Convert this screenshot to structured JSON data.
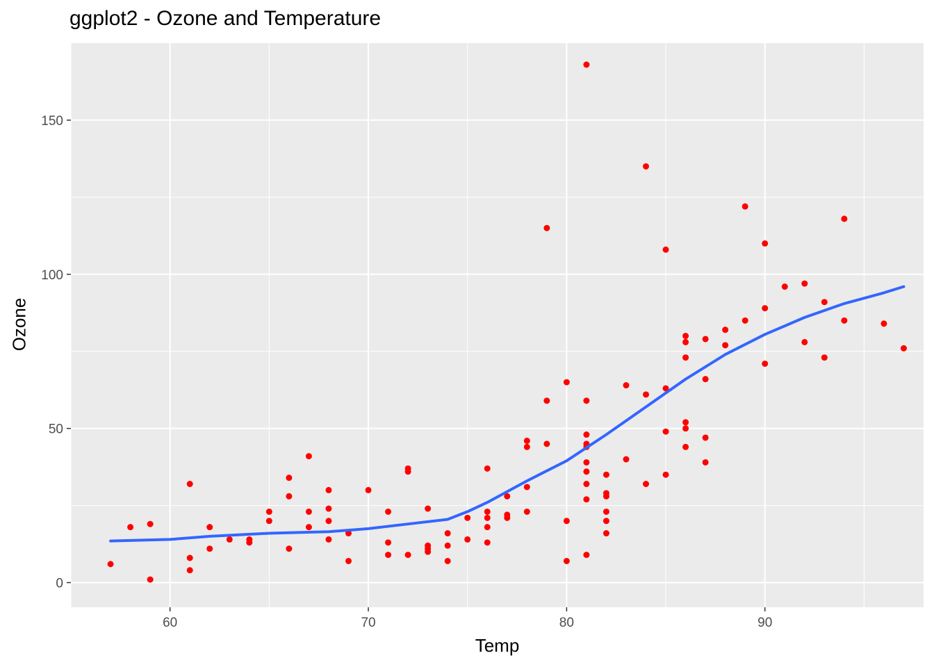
{
  "chart_data": {
    "type": "scatter",
    "title": "ggplot2 - Ozone and Temperature",
    "xlabel": "Temp",
    "ylabel": "Ozone",
    "xlim": [
      55,
      98
    ],
    "ylim": [
      -8,
      175
    ],
    "x_ticks": [
      60,
      70,
      80,
      90
    ],
    "y_ticks": [
      0,
      50,
      100,
      150
    ],
    "x_minor_ticks": [
      55,
      65,
      75,
      85,
      95
    ],
    "y_minor_ticks": [
      25,
      75,
      125
    ],
    "grid": true,
    "legend": "none",
    "colors": {
      "panel_background": "#ebebeb",
      "grid": "#ffffff",
      "points": "#ff0000",
      "smooth_line": "#3366ff",
      "tick_text": "#4d4d4d"
    },
    "series": [
      {
        "kind": "points",
        "points": [
          [
            57,
            6
          ],
          [
            58,
            18
          ],
          [
            59,
            19
          ],
          [
            59,
            1
          ],
          [
            61,
            32
          ],
          [
            61,
            8
          ],
          [
            61,
            4
          ],
          [
            62,
            18
          ],
          [
            62,
            11
          ],
          [
            63,
            14
          ],
          [
            64,
            14
          ],
          [
            64,
            13
          ],
          [
            65,
            23
          ],
          [
            65,
            20
          ],
          [
            66,
            34
          ],
          [
            66,
            28
          ],
          [
            66,
            11
          ],
          [
            67,
            41
          ],
          [
            67,
            23
          ],
          [
            67,
            18
          ],
          [
            68,
            30
          ],
          [
            68,
            24
          ],
          [
            68,
            20
          ],
          [
            68,
            14
          ],
          [
            69,
            16
          ],
          [
            69,
            7
          ],
          [
            70,
            30
          ],
          [
            71,
            23
          ],
          [
            71,
            13
          ],
          [
            71,
            9
          ],
          [
            72,
            37
          ],
          [
            72,
            36
          ],
          [
            72,
            9
          ],
          [
            73,
            24
          ],
          [
            73,
            12
          ],
          [
            73,
            11
          ],
          [
            73,
            10
          ],
          [
            74,
            16
          ],
          [
            74,
            12
          ],
          [
            74,
            7
          ],
          [
            75,
            21
          ],
          [
            75,
            14
          ],
          [
            76,
            37
          ],
          [
            76,
            23
          ],
          [
            76,
            21
          ],
          [
            76,
            18
          ],
          [
            76,
            13
          ],
          [
            77,
            28
          ],
          [
            77,
            22
          ],
          [
            77,
            21
          ],
          [
            78,
            46
          ],
          [
            78,
            44
          ],
          [
            78,
            31
          ],
          [
            78,
            23
          ],
          [
            79,
            115
          ],
          [
            79,
            59
          ],
          [
            79,
            45
          ],
          [
            80,
            65
          ],
          [
            80,
            20
          ],
          [
            80,
            7
          ],
          [
            81,
            168
          ],
          [
            81,
            59
          ],
          [
            81,
            48
          ],
          [
            81,
            45
          ],
          [
            81,
            44
          ],
          [
            81,
            39
          ],
          [
            81,
            36
          ],
          [
            81,
            32
          ],
          [
            81,
            27
          ],
          [
            81,
            9
          ],
          [
            82,
            35
          ],
          [
            82,
            29
          ],
          [
            82,
            28
          ],
          [
            82,
            23
          ],
          [
            82,
            20
          ],
          [
            82,
            16
          ],
          [
            83,
            64
          ],
          [
            83,
            40
          ],
          [
            84,
            135
          ],
          [
            84,
            61
          ],
          [
            84,
            32
          ],
          [
            85,
            108
          ],
          [
            85,
            63
          ],
          [
            85,
            49
          ],
          [
            85,
            35
          ],
          [
            86,
            80
          ],
          [
            86,
            78
          ],
          [
            86,
            73
          ],
          [
            86,
            52
          ],
          [
            86,
            50
          ],
          [
            86,
            44
          ],
          [
            87,
            79
          ],
          [
            87,
            66
          ],
          [
            87,
            47
          ],
          [
            87,
            39
          ],
          [
            88,
            82
          ],
          [
            88,
            77
          ],
          [
            89,
            122
          ],
          [
            89,
            85
          ],
          [
            90,
            110
          ],
          [
            90,
            89
          ],
          [
            90,
            71
          ],
          [
            91,
            96
          ],
          [
            92,
            97
          ],
          [
            92,
            78
          ],
          [
            93,
            91
          ],
          [
            93,
            73
          ],
          [
            94,
            118
          ],
          [
            94,
            85
          ],
          [
            96,
            84
          ],
          [
            97,
            76
          ]
        ]
      },
      {
        "kind": "smooth",
        "points": [
          [
            57,
            13.5
          ],
          [
            60,
            14
          ],
          [
            62,
            15
          ],
          [
            65,
            16
          ],
          [
            68,
            16.5
          ],
          [
            70,
            17.5
          ],
          [
            72,
            19
          ],
          [
            74,
            20.5
          ],
          [
            75,
            23
          ],
          [
            76,
            26
          ],
          [
            78,
            33
          ],
          [
            80,
            39.5
          ],
          [
            82,
            48
          ],
          [
            84,
            57
          ],
          [
            86,
            66
          ],
          [
            88,
            74
          ],
          [
            90,
            80.5
          ],
          [
            92,
            86
          ],
          [
            94,
            90.5
          ],
          [
            96,
            94
          ],
          [
            97,
            96
          ]
        ]
      }
    ]
  }
}
